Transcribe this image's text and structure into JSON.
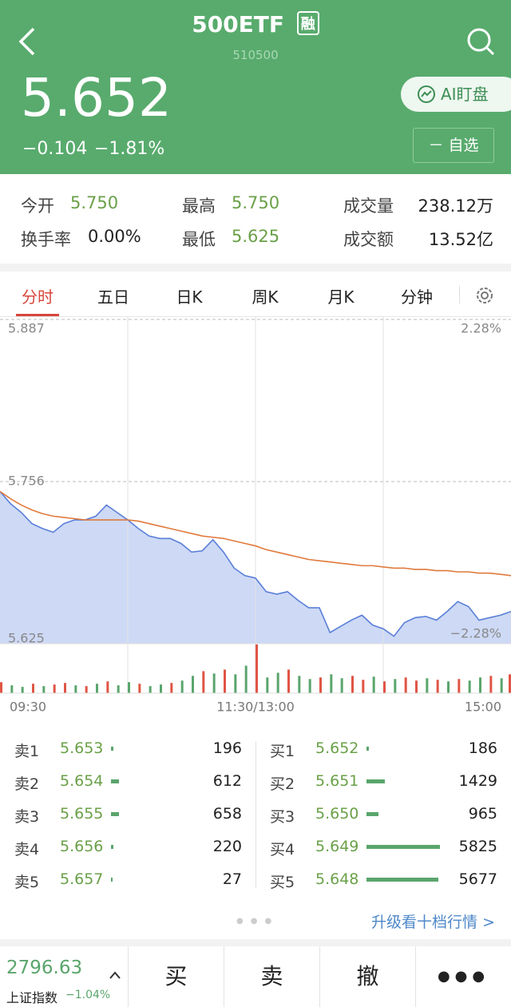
{
  "header": {
    "title": "500ETF",
    "badge": "融",
    "code": "510500",
    "price": "5.652",
    "change": "−0.104",
    "change_pct": "−1.81%",
    "ai_button": "AI盯盘",
    "watch_button": "－ 自选"
  },
  "stats": [
    {
      "label": "今开",
      "value": "5.750"
    },
    {
      "label": "最高",
      "value": "5.750"
    },
    {
      "label": "成交量",
      "value": "238.12万"
    },
    {
      "label": "换手率",
      "value": "0.00%"
    },
    {
      "label": "最低",
      "value": "5.625"
    },
    {
      "label": "成交额",
      "value": "13.52亿"
    }
  ],
  "tabs": [
    "分时",
    "五日",
    "日K",
    "周K",
    "月K",
    "分钟"
  ],
  "chart_data": {
    "type": "line",
    "categories": [
      "09:30",
      null,
      null,
      null,
      null,
      null,
      null,
      null,
      null,
      null,
      null,
      null,
      null,
      null,
      null,
      null,
      null,
      null,
      null,
      null,
      null,
      null,
      null,
      null,
      "11:30/13:00",
      null,
      null,
      null,
      null,
      null,
      null,
      null,
      null,
      null,
      null,
      null,
      null,
      null,
      null,
      null,
      null,
      null,
      null,
      null,
      null,
      null,
      null,
      null,
      "15:00"
    ],
    "series": [
      {
        "color": "#5a7fd8",
        "fill": "#cdd9f5",
        "values": [
          5.748,
          5.738,
          5.731,
          5.722,
          5.718,
          5.715,
          5.722,
          5.725,
          5.725,
          5.728,
          5.737,
          5.731,
          5.725,
          5.718,
          5.712,
          5.71,
          5.71,
          5.706,
          5.699,
          5.7,
          5.709,
          5.699,
          5.686,
          5.68,
          5.678,
          5.667,
          5.665,
          5.667,
          5.66,
          5.654,
          5.654,
          5.634,
          5.639,
          5.644,
          5.648,
          5.64,
          5.637,
          5.631,
          5.642,
          5.646,
          5.647,
          5.644,
          5.651,
          5.659,
          5.655,
          5.644,
          5.646,
          5.648,
          5.651
        ]
      },
      {
        "color": "#e07a3c",
        "values": [
          5.748,
          5.742,
          5.737,
          5.733,
          5.73,
          5.728,
          5.727,
          5.726,
          5.725,
          5.725,
          5.725,
          5.725,
          5.725,
          5.724,
          5.722,
          5.72,
          5.718,
          5.716,
          5.714,
          5.712,
          5.711,
          5.71,
          5.708,
          5.706,
          5.704,
          5.701,
          5.699,
          5.697,
          5.695,
          5.693,
          5.692,
          5.691,
          5.69,
          5.689,
          5.688,
          5.688,
          5.687,
          5.686,
          5.686,
          5.685,
          5.685,
          5.684,
          5.684,
          5.683,
          5.683,
          5.682,
          5.682,
          5.681,
          5.68
        ]
      }
    ],
    "ylim": [
      5.625,
      5.887
    ],
    "yticks": [
      5.625,
      5.756,
      5.887
    ],
    "y2lim": [
      -2.28,
      2.28
    ],
    "y2ticks": [
      {
        "value": -2.28,
        "label": "−2.28%"
      },
      {
        "value": 2.28,
        "label": "2.28%"
      }
    ],
    "grid": true,
    "volume": {
      "vlim": [
        0,
        62
      ],
      "values": [
        14,
        10,
        8,
        12,
        9,
        11,
        13,
        10,
        9,
        12,
        15,
        10,
        14,
        12,
        9,
        11,
        13,
        16,
        22,
        28,
        25,
        30,
        24,
        35,
        62,
        20,
        26,
        30,
        22,
        18,
        20,
        24,
        19,
        22,
        17,
        21,
        15,
        18,
        20,
        16,
        19,
        17,
        15,
        18,
        16,
        20,
        22,
        19,
        24
      ],
      "colors": [
        "#e05545",
        "#5aa56c",
        "#5aa56c",
        "#e05545",
        "#5aa56c",
        "#e05545",
        "#e05545",
        "#5aa56c",
        "#e05545",
        "#5aa56c",
        "#e05545",
        "#5aa56c",
        "#5aa56c",
        "#e05545",
        "#5aa56c",
        "#5aa56c",
        "#e05545",
        "#5aa56c",
        "#5aa56c",
        "#e05545",
        "#5aa56c",
        "#e05545",
        "#5aa56c",
        "#5aa56c",
        "#e05545",
        "#5aa56c",
        "#5aa56c",
        "#e05545",
        "#5aa56c",
        "#5aa56c",
        "#e05545",
        "#5aa56c",
        "#5aa56c",
        "#e05545",
        "#e05545",
        "#5aa56c",
        "#e05545",
        "#5aa56c",
        "#e05545",
        "#e05545",
        "#5aa56c",
        "#e05545",
        "#5aa56c",
        "#e05545",
        "#5aa56c",
        "#5aa56c",
        "#e05545",
        "#5aa56c",
        "#e05545"
      ]
    }
  },
  "order_book": {
    "bar_color": "#5aa56c",
    "sell": [
      {
        "label": "卖1",
        "price": "5.653",
        "volume": 196
      },
      {
        "label": "卖2",
        "price": "5.654",
        "volume": 612
      },
      {
        "label": "卖3",
        "price": "5.655",
        "volume": 658
      },
      {
        "label": "卖4",
        "price": "5.656",
        "volume": 220
      },
      {
        "label": "卖5",
        "price": "5.657",
        "volume": 27
      }
    ],
    "buy": [
      {
        "label": "买1",
        "price": "5.652",
        "volume": 186
      },
      {
        "label": "买2",
        "price": "5.651",
        "volume": 1429
      },
      {
        "label": "买3",
        "price": "5.650",
        "volume": 965
      },
      {
        "label": "买4",
        "price": "5.649",
        "volume": 5825
      },
      {
        "label": "买5",
        "price": "5.648",
        "volume": 5677
      }
    ],
    "more_link": "升级看十档行情 >"
  },
  "footer": {
    "index_value": "2796.63",
    "index_name": "上证指数",
    "index_change": "−1.04%",
    "buttons": [
      "买",
      "卖",
      "撤"
    ]
  }
}
